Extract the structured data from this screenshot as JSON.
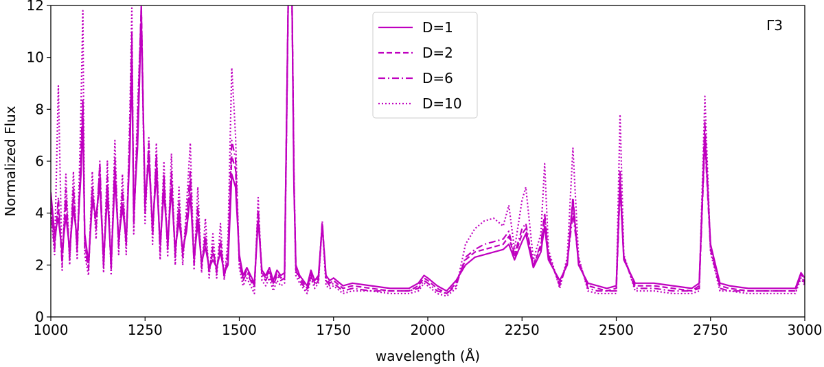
{
  "chart_data": {
    "type": "line",
    "panel_label": "Γ3",
    "xlabel": "wavelength (Å)",
    "ylabel": "Normalized Flux",
    "xlim": [
      1000,
      3000
    ],
    "ylim": [
      0,
      12
    ],
    "xticks": [
      1000,
      1250,
      1500,
      1750,
      2000,
      2250,
      2500,
      2750,
      3000
    ],
    "yticks": [
      0,
      2,
      4,
      6,
      8,
      10,
      12
    ],
    "grid": false,
    "legend_position": "top-center",
    "line_color": "#bf00bf",
    "series": [
      {
        "name": "D=1",
        "style": "solid",
        "x": [
          1000,
          1010,
          1020,
          1030,
          1040,
          1050,
          1060,
          1070,
          1080,
          1085,
          1090,
          1100,
          1110,
          1120,
          1130,
          1140,
          1150,
          1160,
          1170,
          1180,
          1190,
          1200,
          1210,
          1215,
          1220,
          1230,
          1240,
          1250,
          1260,
          1270,
          1280,
          1290,
          1300,
          1310,
          1320,
          1330,
          1340,
          1350,
          1360,
          1370,
          1380,
          1390,
          1400,
          1410,
          1420,
          1430,
          1440,
          1450,
          1460,
          1470,
          1480,
          1490,
          1500,
          1510,
          1520,
          1530,
          1540,
          1550,
          1560,
          1570,
          1580,
          1590,
          1600,
          1610,
          1620,
          1630,
          1635,
          1640,
          1645,
          1650,
          1660,
          1670,
          1680,
          1690,
          1700,
          1710,
          1720,
          1730,
          1740,
          1750,
          1775,
          1800,
          1850,
          1900,
          1950,
          1975,
          1990,
          2000,
          2025,
          2050,
          2075,
          2100,
          2125,
          2150,
          2175,
          2200,
          2215,
          2230,
          2250,
          2260,
          2280,
          2300,
          2310,
          2320,
          2350,
          2370,
          2385,
          2400,
          2425,
          2450,
          2475,
          2500,
          2510,
          2520,
          2550,
          2600,
          2650,
          2700,
          2720,
          2735,
          2750,
          2775,
          2800,
          2850,
          2900,
          2950,
          2975,
          2990,
          3000
        ],
        "values": [
          4.8,
          3.2,
          3.8,
          2.5,
          3.9,
          2.6,
          4.2,
          3.0,
          5.5,
          7.6,
          3.2,
          2.1,
          4.4,
          3.9,
          5.1,
          2.2,
          4.7,
          2.1,
          5.3,
          3.0,
          4.2,
          3.0,
          6.5,
          9.8,
          4.0,
          6.5,
          11.5,
          4.5,
          6.0,
          3.5,
          5.5,
          2.8,
          4.8,
          2.9,
          4.9,
          2.6,
          3.7,
          2.6,
          3.3,
          4.7,
          2.3,
          3.6,
          2.1,
          2.7,
          1.9,
          2.2,
          1.9,
          2.5,
          1.7,
          2.0,
          5.5,
          5.0,
          2.4,
          1.6,
          1.9,
          1.6,
          1.3,
          3.7,
          1.8,
          1.6,
          1.9,
          1.4,
          1.8,
          1.6,
          1.7,
          12.5,
          14.0,
          12.0,
          5.0,
          2.0,
          1.6,
          1.4,
          1.2,
          1.8,
          1.4,
          1.6,
          3.5,
          1.6,
          1.4,
          1.5,
          1.2,
          1.3,
          1.2,
          1.1,
          1.1,
          1.3,
          1.6,
          1.5,
          1.2,
          1.0,
          1.4,
          2.0,
          2.3,
          2.4,
          2.5,
          2.6,
          2.8,
          2.2,
          2.9,
          3.2,
          1.9,
          2.5,
          3.5,
          2.2,
          1.4,
          2.0,
          4.5,
          2.0,
          1.3,
          1.2,
          1.1,
          1.2,
          5.2,
          2.2,
          1.3,
          1.3,
          1.2,
          1.1,
          1.3,
          7.0,
          2.8,
          1.3,
          1.2,
          1.1,
          1.1,
          1.1,
          1.1,
          1.7,
          1.5
        ]
      },
      {
        "name": "D=2",
        "style": "dashed",
        "x": [
          1000,
          1010,
          1020,
          1030,
          1040,
          1050,
          1060,
          1070,
          1080,
          1085,
          1090,
          1100,
          1110,
          1120,
          1130,
          1140,
          1150,
          1160,
          1170,
          1180,
          1190,
          1200,
          1210,
          1215,
          1220,
          1230,
          1240,
          1250,
          1260,
          1270,
          1280,
          1290,
          1300,
          1310,
          1320,
          1330,
          1340,
          1350,
          1360,
          1370,
          1380,
          1390,
          1400,
          1410,
          1420,
          1430,
          1440,
          1450,
          1460,
          1470,
          1480,
          1490,
          1500,
          1510,
          1520,
          1530,
          1540,
          1550,
          1560,
          1570,
          1580,
          1590,
          1600,
          1610,
          1620,
          1630,
          1635,
          1640,
          1645,
          1650,
          1660,
          1670,
          1680,
          1690,
          1700,
          1710,
          1720,
          1730,
          1740,
          1750,
          1775,
          1800,
          1850,
          1900,
          1950,
          1975,
          1990,
          2000,
          2025,
          2050,
          2075,
          2100,
          2125,
          2150,
          2175,
          2200,
          2215,
          2230,
          2250,
          2260,
          2280,
          2300,
          2310,
          2320,
          2350,
          2370,
          2385,
          2400,
          2425,
          2450,
          2475,
          2500,
          2510,
          2520,
          2550,
          2600,
          2650,
          2700,
          2720,
          2735,
          2750,
          2775,
          2800,
          2850,
          2900,
          2950,
          2975,
          2990,
          3000
        ],
        "values": [
          4.5,
          2.8,
          4.2,
          2.2,
          4.5,
          2.4,
          4.6,
          2.7,
          6.0,
          8.2,
          2.9,
          1.9,
          4.8,
          3.6,
          5.6,
          2.0,
          5.1,
          1.9,
          5.8,
          2.8,
          4.6,
          2.8,
          7.0,
          10.5,
          3.7,
          7.0,
          12.0,
          4.2,
          6.4,
          3.3,
          6.0,
          2.6,
          5.2,
          2.7,
          5.3,
          2.4,
          4.1,
          2.4,
          3.6,
          5.2,
          2.1,
          4.0,
          2.0,
          3.0,
          1.8,
          2.5,
          1.8,
          2.8,
          1.6,
          2.3,
          6.2,
          5.7,
          2.2,
          1.5,
          1.8,
          1.5,
          1.2,
          4.0,
          1.7,
          1.5,
          1.8,
          1.3,
          1.7,
          1.5,
          1.6,
          12.5,
          14.0,
          12.0,
          5.2,
          1.9,
          1.5,
          1.3,
          1.1,
          1.7,
          1.3,
          1.5,
          3.6,
          1.5,
          1.3,
          1.4,
          1.1,
          1.2,
          1.1,
          1.0,
          1.0,
          1.2,
          1.5,
          1.4,
          1.1,
          0.9,
          1.3,
          2.2,
          2.5,
          2.6,
          2.7,
          2.8,
          3.1,
          2.3,
          3.2,
          3.4,
          2.0,
          2.7,
          3.8,
          2.3,
          1.3,
          2.1,
          4.6,
          2.1,
          1.2,
          1.1,
          1.0,
          1.1,
          5.6,
          2.3,
          1.2,
          1.2,
          1.1,
          1.0,
          1.2,
          7.5,
          2.7,
          1.2,
          1.1,
          1.0,
          1.0,
          1.0,
          1.0,
          1.7,
          1.4
        ]
      },
      {
        "name": "D=6",
        "style": "dashdot",
        "x": [
          1000,
          1010,
          1020,
          1030,
          1040,
          1050,
          1060,
          1070,
          1080,
          1085,
          1090,
          1100,
          1110,
          1120,
          1130,
          1140,
          1150,
          1160,
          1170,
          1180,
          1190,
          1200,
          1210,
          1215,
          1220,
          1230,
          1240,
          1250,
          1260,
          1270,
          1280,
          1290,
          1300,
          1310,
          1320,
          1330,
          1340,
          1350,
          1360,
          1370,
          1380,
          1390,
          1400,
          1410,
          1420,
          1430,
          1440,
          1450,
          1460,
          1470,
          1480,
          1490,
          1500,
          1510,
          1520,
          1530,
          1540,
          1550,
          1560,
          1570,
          1580,
          1590,
          1600,
          1610,
          1620,
          1630,
          1635,
          1640,
          1645,
          1650,
          1660,
          1670,
          1680,
          1690,
          1700,
          1710,
          1720,
          1730,
          1740,
          1750,
          1775,
          1800,
          1850,
          1900,
          1950,
          1975,
          1990,
          2000,
          2025,
          2050,
          2075,
          2100,
          2125,
          2150,
          2175,
          2200,
          2215,
          2230,
          2250,
          2260,
          2280,
          2300,
          2310,
          2320,
          2350,
          2370,
          2385,
          2400,
          2425,
          2450,
          2475,
          2500,
          2510,
          2520,
          2550,
          2600,
          2650,
          2700,
          2720,
          2735,
          2750,
          2775,
          2800,
          2850,
          2900,
          2950,
          2975,
          2990,
          3000
        ],
        "values": [
          4.2,
          2.6,
          4.6,
          2.0,
          4.9,
          2.2,
          5.0,
          2.5,
          6.4,
          8.4,
          2.7,
          1.8,
          5.0,
          3.4,
          5.9,
          1.9,
          5.4,
          1.8,
          6.1,
          2.7,
          4.9,
          2.7,
          7.4,
          11.0,
          3.5,
          7.4,
          12.0,
          4.0,
          6.7,
          3.1,
          6.3,
          2.5,
          5.5,
          2.6,
          5.6,
          2.3,
          4.4,
          2.3,
          3.8,
          5.6,
          2.0,
          4.3,
          1.9,
          3.2,
          1.7,
          2.7,
          1.7,
          3.0,
          1.5,
          2.5,
          6.8,
          6.1,
          2.1,
          1.4,
          1.7,
          1.4,
          1.1,
          4.2,
          1.6,
          1.4,
          1.7,
          1.2,
          1.6,
          1.4,
          1.5,
          12.5,
          14.0,
          12.0,
          5.4,
          1.8,
          1.4,
          1.2,
          1.0,
          1.6,
          1.2,
          1.4,
          3.7,
          1.4,
          1.2,
          1.3,
          1.0,
          1.1,
          1.0,
          1.0,
          1.0,
          1.1,
          1.4,
          1.3,
          1.0,
          0.9,
          1.2,
          2.3,
          2.6,
          2.8,
          2.9,
          3.0,
          3.3,
          2.4,
          3.4,
          3.6,
          2.0,
          2.8,
          4.0,
          2.4,
          1.2,
          2.1,
          4.0,
          2.2,
          1.1,
          1.0,
          1.0,
          1.0,
          5.0,
          2.3,
          1.1,
          1.1,
          1.0,
          1.0,
          1.1,
          6.8,
          2.6,
          1.1,
          1.0,
          1.0,
          1.0,
          1.0,
          1.0,
          1.6,
          1.3
        ]
      },
      {
        "name": "D=10",
        "style": "dotted",
        "x": [
          1000,
          1010,
          1020,
          1030,
          1040,
          1050,
          1060,
          1070,
          1080,
          1085,
          1090,
          1100,
          1110,
          1120,
          1130,
          1140,
          1150,
          1160,
          1170,
          1180,
          1190,
          1200,
          1210,
          1215,
          1220,
          1230,
          1240,
          1250,
          1260,
          1270,
          1280,
          1290,
          1300,
          1310,
          1320,
          1330,
          1340,
          1350,
          1360,
          1370,
          1380,
          1390,
          1400,
          1410,
          1420,
          1430,
          1440,
          1450,
          1460,
          1470,
          1480,
          1490,
          1500,
          1510,
          1520,
          1530,
          1540,
          1550,
          1560,
          1570,
          1580,
          1590,
          1600,
          1610,
          1620,
          1630,
          1635,
          1640,
          1645,
          1650,
          1660,
          1670,
          1680,
          1690,
          1700,
          1710,
          1720,
          1730,
          1740,
          1750,
          1775,
          1800,
          1850,
          1900,
          1950,
          1975,
          1990,
          2000,
          2025,
          2050,
          2075,
          2100,
          2125,
          2150,
          2175,
          2200,
          2215,
          2230,
          2250,
          2260,
          2280,
          2300,
          2310,
          2320,
          2350,
          2370,
          2385,
          2400,
          2425,
          2450,
          2475,
          2500,
          2510,
          2520,
          2550,
          2600,
          2650,
          2700,
          2720,
          2735,
          2750,
          2775,
          2800,
          2850,
          2900,
          2950,
          2975,
          2990,
          3000
        ],
        "values": [
          4.0,
          2.4,
          8.9,
          1.8,
          5.5,
          2.0,
          5.6,
          2.2,
          8.0,
          11.8,
          2.4,
          1.6,
          5.6,
          3.0,
          6.0,
          1.7,
          6.0,
          1.6,
          6.8,
          2.4,
          5.5,
          2.4,
          8.0,
          11.9,
          3.2,
          8.0,
          11.8,
          3.6,
          6.9,
          2.8,
          6.7,
          2.2,
          6.0,
          2.3,
          6.3,
          2.0,
          5.0,
          2.0,
          4.3,
          6.7,
          1.8,
          5.0,
          1.7,
          3.8,
          1.5,
          3.2,
          1.5,
          3.6,
          1.4,
          3.0,
          9.6,
          7.0,
          1.9,
          1.2,
          1.5,
          1.2,
          0.9,
          4.6,
          1.4,
          1.2,
          1.5,
          1.0,
          1.4,
          1.2,
          1.3,
          12.5,
          14.0,
          12.0,
          5.5,
          1.6,
          1.3,
          1.1,
          0.9,
          1.5,
          1.1,
          1.3,
          3.6,
          1.2,
          1.1,
          1.2,
          0.9,
          1.0,
          1.0,
          0.9,
          0.9,
          1.0,
          1.3,
          1.2,
          0.9,
          0.8,
          1.1,
          2.8,
          3.4,
          3.7,
          3.8,
          3.5,
          4.3,
          2.6,
          4.5,
          5.0,
          2.2,
          3.2,
          5.9,
          2.6,
          1.1,
          2.3,
          6.5,
          2.3,
          1.0,
          0.9,
          0.9,
          0.9,
          7.8,
          2.4,
          1.0,
          1.0,
          0.9,
          0.9,
          1.0,
          8.5,
          2.5,
          1.0,
          1.0,
          0.9,
          0.9,
          0.9,
          0.9,
          1.5,
          1.2
        ]
      }
    ]
  }
}
